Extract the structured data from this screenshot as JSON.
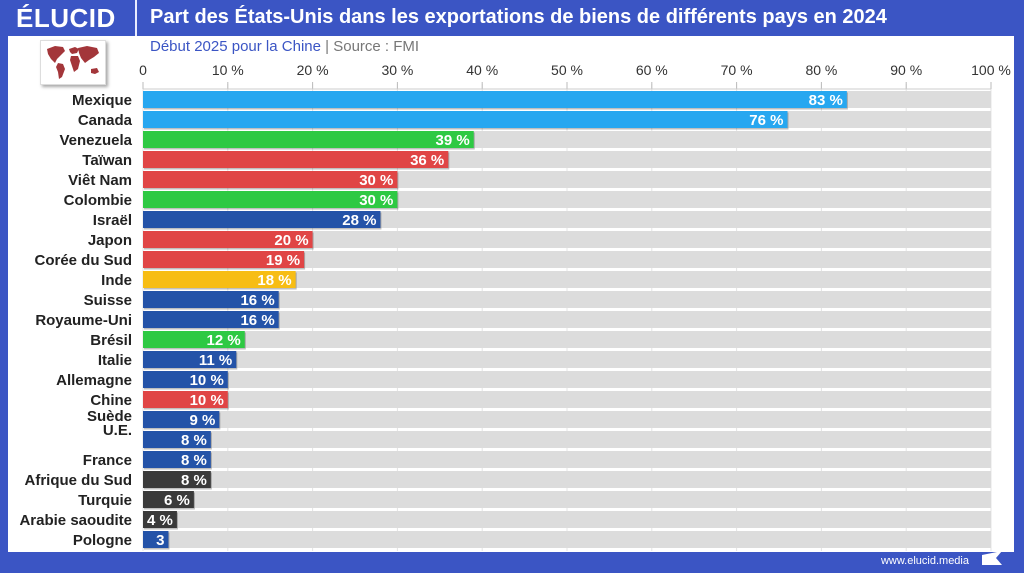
{
  "header": {
    "logo": "ÉLUCID",
    "title": "Part des États-Unis dans les exportations de biens de différents pays en 2024"
  },
  "subtitle": {
    "note": "Début 2025 pour la Chine",
    "separator": "|",
    "source": "Source : FMI"
  },
  "footer": {
    "url": "www.elucid.media"
  },
  "icons": {
    "map": "world-map-icon",
    "flag": "elucid-flag-icon"
  },
  "colors": {
    "light_blue": "#27a7f0",
    "green": "#2ec943",
    "red": "#e04545",
    "dark_blue": "#2453a8",
    "yellow": "#f7bd14",
    "dark_gray": "#3a3a3a",
    "track": "#dcdcdc",
    "brand": "#3b55c4"
  },
  "chart_data": {
    "type": "bar",
    "orientation": "horizontal",
    "title": "Part des États-Unis dans les exportations de biens de différents pays en 2024",
    "xlabel": "",
    "ylabel": "",
    "xlim": [
      0,
      100
    ],
    "x_ticks": [
      "0",
      "10 %",
      "20 %",
      "30 %",
      "40 %",
      "50 %",
      "60 %",
      "70 %",
      "80 %",
      "90 %",
      "100 %"
    ],
    "grid": true,
    "categories": [
      "Mexique",
      "Canada",
      "Venezuela",
      "Taïwan",
      "Viêt Nam",
      "Colombie",
      "Israël",
      "Japon",
      "Corée du Sud",
      "Inde",
      "Suisse",
      "Royaume-Uni",
      "Brésil",
      "Italie",
      "Allemagne",
      "Chine",
      "Suède",
      "U.E.",
      "France",
      "Afrique du Sud",
      "Turquie",
      "Arabie saoudite",
      "Pologne"
    ],
    "values": [
      83,
      76,
      39,
      36,
      30,
      30,
      28,
      20,
      19,
      18,
      16,
      16,
      12,
      11,
      10,
      10,
      9,
      8,
      8,
      8,
      6,
      4,
      3
    ],
    "labels": [
      "83 %",
      "76 %",
      "39 %",
      "36 %",
      "30 %",
      "30 %",
      "28 %",
      "20 %",
      "19 %",
      "18 %",
      "16 %",
      "16 %",
      "12 %",
      "11 %",
      "10 %",
      "10 %",
      "9 %",
      "8 %",
      "8 %",
      "8 %",
      "6 %",
      "4 %",
      "3"
    ],
    "bar_colors": [
      "light_blue",
      "light_blue",
      "green",
      "red",
      "red",
      "green",
      "dark_blue",
      "red",
      "red",
      "yellow",
      "dark_blue",
      "dark_blue",
      "green",
      "dark_blue",
      "dark_blue",
      "red",
      "dark_blue",
      "dark_blue",
      "dark_blue",
      "dark_gray",
      "dark_gray",
      "dark_gray",
      "dark_blue"
    ]
  }
}
